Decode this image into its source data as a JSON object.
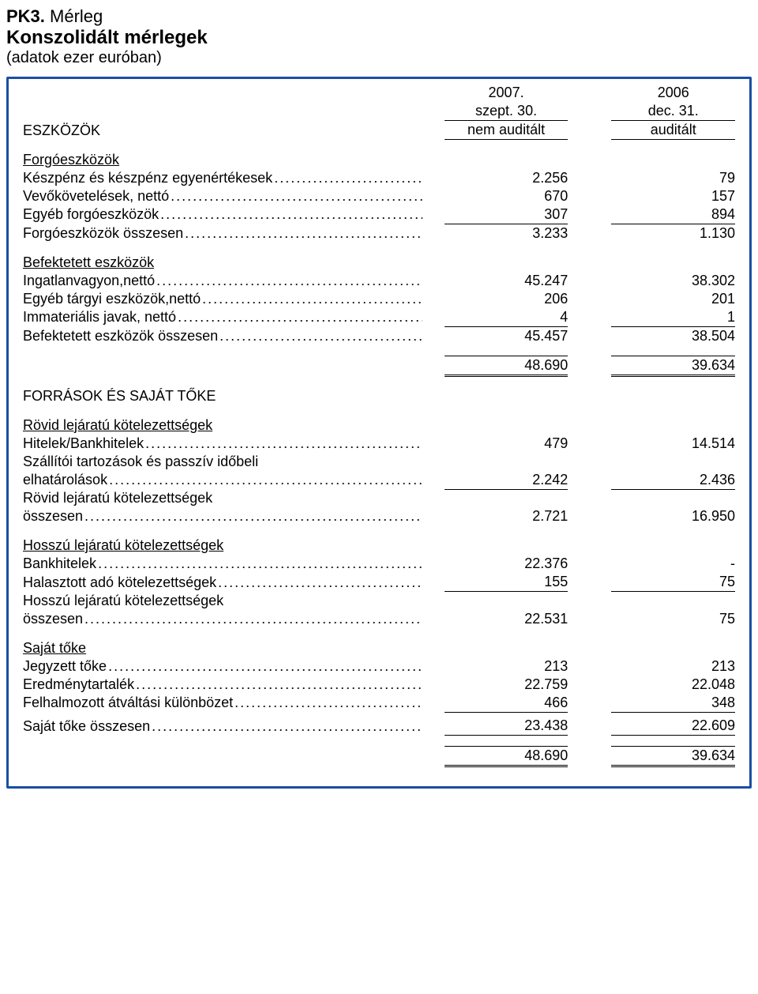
{
  "header": {
    "pk3_prefix": "PK3.",
    "pk3_suffix": " Mérleg",
    "title": "Konszolidált mérlegek",
    "subtitle": "(adatok ezer euróban)"
  },
  "columns": {
    "col1_year": "2007.",
    "col1_date": "szept. 30.",
    "col1_audit": "nem auditált",
    "col2_year": "2006",
    "col2_date": "dec. 31.",
    "col2_audit": "auditált"
  },
  "sections": {
    "eszkozok": "ESZKÖZÖK",
    "forgoeszkozok": "Forgóeszközök",
    "befektetett": "Befektetett eszközök",
    "forrasok": "FORRÁSOK ÉS SAJÁT TŐKE",
    "rovid": "Rövid lejáratú kötelezettségek",
    "hosszu": "Hosszú lejáratú kötelezettségek",
    "sajat": "Saját tőke"
  },
  "rows": {
    "keszpenz": {
      "label": "Készpénz és készpénz egyenértékesek",
      "v1": "2.256",
      "v2": "79"
    },
    "vevo": {
      "label": "Vevőkövetelések, nettó",
      "v1": "670",
      "v2": "157"
    },
    "egyeb_forgo": {
      "label": "Egyéb forgóeszközök",
      "v1": "307",
      "v2": "894"
    },
    "forgo_ossz": {
      "label": "Forgóeszközök összesen",
      "v1": "3.233",
      "v2": "1.130"
    },
    "ingatlan": {
      "label": "Ingatlanvagyon,nettó",
      "v1": "45.247",
      "v2": "38.302"
    },
    "egyeb_targyi": {
      "label": "Egyéb tárgyi eszközök,nettó",
      "v1": "206",
      "v2": "201"
    },
    "immat": {
      "label": "Immateriális javak, nettó",
      "v1": "4",
      "v2": "1"
    },
    "befekt_ossz": {
      "label": "Befektetett eszközök összesen",
      "v1": "45.457",
      "v2": "38.504"
    },
    "total1": {
      "v1": "48.690",
      "v2": "39.634"
    },
    "hitelek": {
      "label": "Hitelek/Bankhitelek",
      "v1": "479",
      "v2": "14.514"
    },
    "szallitoi_l1": "Szállítói tartozások és passzív időbeli",
    "szallitoi": {
      "label": "elhatárolások",
      "v1": "2.242",
      "v2": "2.436"
    },
    "rovid_ossz_l1": "Rövid lejáratú kötelezettségek",
    "rovid_ossz": {
      "label": "összesen",
      "v1": "2.721",
      "v2": "16.950"
    },
    "bankhitelek": {
      "label": "Bankhitelek",
      "v1": "22.376",
      "v2": "-"
    },
    "halasztott": {
      "label": "Halasztott adó kötelezettségek",
      "v1": "155",
      "v2": "75"
    },
    "hosszu_ossz_l1": "Hosszú lejáratú kötelezettségek",
    "hosszu_ossz": {
      "label": "összesen",
      "v1": "22.531",
      "v2": "75"
    },
    "jegyzett": {
      "label": "Jegyzett tőke",
      "v1": "213",
      "v2": "213"
    },
    "eredmeny": {
      "label": "Eredménytartalék",
      "v1": "22.759",
      "v2": "22.048"
    },
    "felhalm": {
      "label": "Felhalmozott átváltási különbözet",
      "v1": "466",
      "v2": "348"
    },
    "sajat_ossz": {
      "label": "Saját tőke összesen",
      "v1": "23.438",
      "v2": "22.609"
    },
    "total2": {
      "v1": "48.690",
      "v2": "39.634"
    }
  }
}
